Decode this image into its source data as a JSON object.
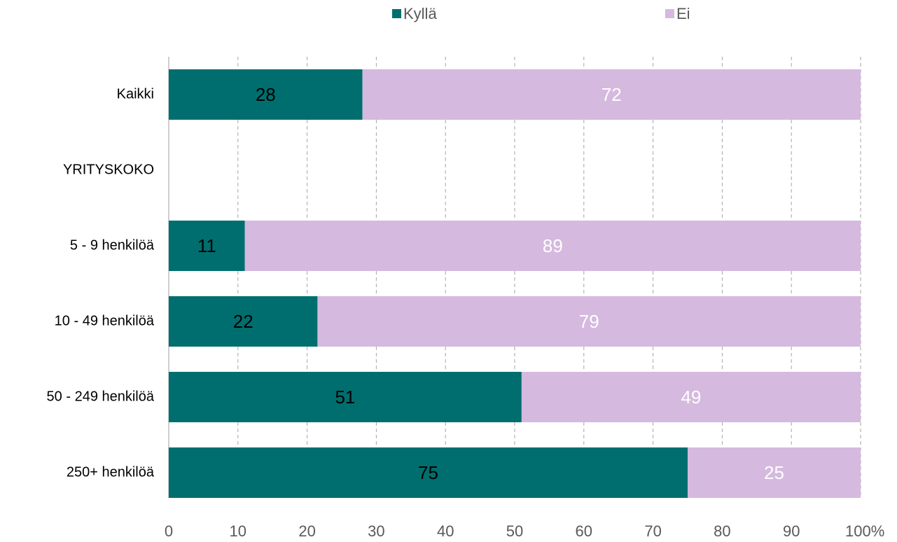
{
  "chart_data": {
    "type": "stacked-bar-horizontal",
    "categories": [
      "Kaikki",
      "YRITYSKOKO",
      "5 - 9 henkilöä",
      "10 - 49 henkilöä",
      "50 - 249 henkilöä",
      "250+ henkilöä"
    ],
    "series": [
      {
        "name": "Kyllä",
        "color": "#006e6e",
        "label_color": "#000000",
        "values": [
          28,
          null,
          11,
          21.5,
          51,
          75
        ],
        "value_labels": [
          "28",
          null,
          "11",
          "22",
          "51",
          "75"
        ]
      },
      {
        "name": "Ei",
        "color": "#d5b9df",
        "label_color": "#ffffff",
        "values": [
          72,
          null,
          89,
          78.5,
          49,
          25
        ],
        "value_labels": [
          "72",
          null,
          "89",
          "79",
          "49",
          "25"
        ]
      }
    ],
    "xlim": [
      0,
      100
    ],
    "xticks": [
      0,
      10,
      20,
      30,
      40,
      50,
      60,
      70,
      80,
      90,
      {
        "value": 100,
        "label": "100%"
      }
    ],
    "grid": true,
    "legend": "top"
  }
}
